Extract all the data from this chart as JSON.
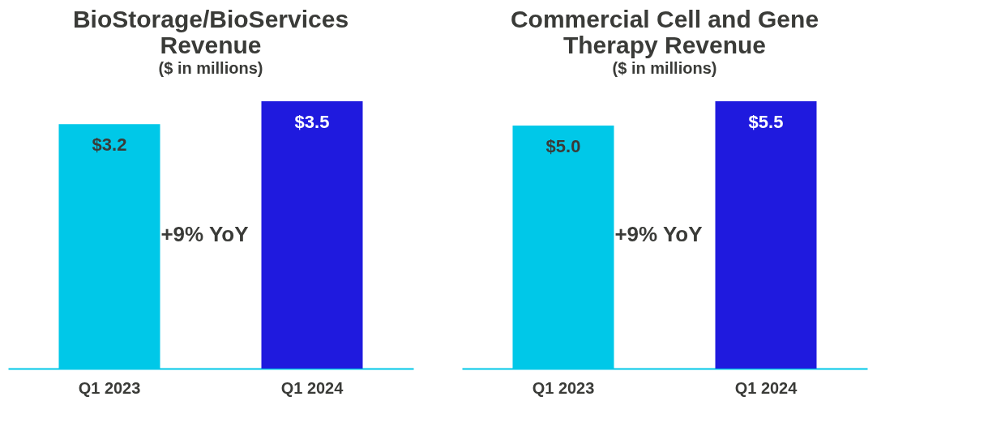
{
  "chart_data": [
    {
      "type": "bar",
      "title": "BioStorage/BioServices Revenue",
      "subtitle": "($ in millions)",
      "categories": [
        "Q1 2023",
        "Q1 2024"
      ],
      "values": [
        3.2,
        3.5
      ],
      "colors": [
        "#00c8e8",
        "#1f1ade"
      ],
      "value_labels": [
        "$3.2",
        "$3.5"
      ],
      "tick_labels": "x",
      "grid": false,
      "annotations": [
        "+9% YoY"
      ]
    },
    {
      "type": "bar",
      "title": "Commercial Cell and Gene Therapy Revenue",
      "subtitle": "($ in millions)",
      "categories": [
        "Q1 2023",
        "Q1 2024"
      ],
      "values": [
        5.0,
        5.5
      ],
      "colors": [
        "#00c8e8",
        "#1f1ade"
      ],
      "value_labels": [
        "$5.0",
        "$5.5"
      ],
      "tick_labels": "x",
      "grid": false,
      "annotations": [
        "+9% YoY"
      ]
    }
  ]
}
